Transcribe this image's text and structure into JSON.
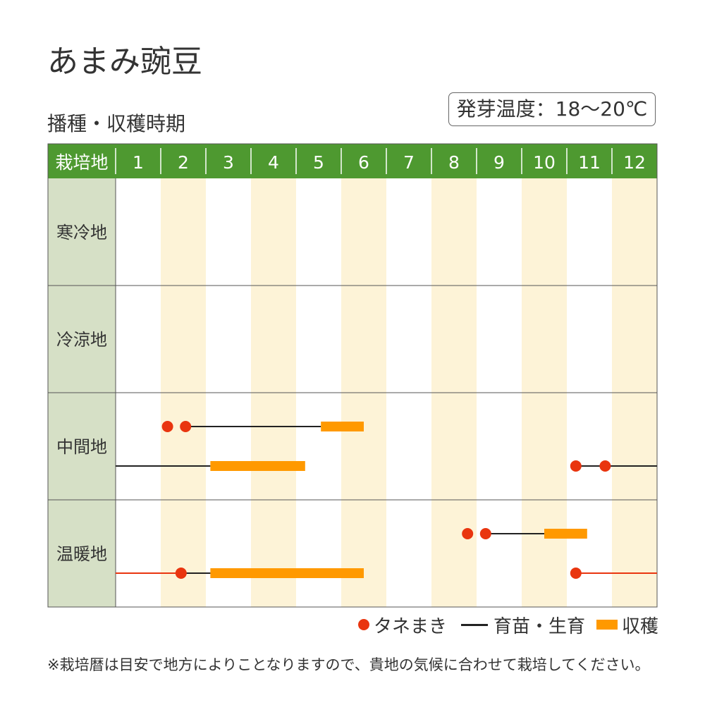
{
  "title": "あまみ豌豆",
  "subtitle": "播種・収穫時期",
  "germination_temp": "発芽温度：18〜20℃",
  "colors": {
    "header_green": "#4e9930",
    "side_green": "#d6e0c6",
    "stripe": "#fdf3d7",
    "sowing": "#e9350f",
    "nursery": "#222222",
    "harvest": "#ff9900"
  },
  "table": {
    "corner_label": "栽培地",
    "months": [
      "1",
      "2",
      "3",
      "4",
      "5",
      "6",
      "7",
      "8",
      "9",
      "10",
      "11",
      "12"
    ],
    "regions": [
      "寒冷地",
      "冷涼地",
      "中間地",
      "温暖地"
    ]
  },
  "chart_data": {
    "type": "table",
    "x_unit": "month",
    "rows": [
      {
        "region": "寒冷地",
        "tracks": []
      },
      {
        "region": "冷涼地",
        "tracks": []
      },
      {
        "region": "中間地",
        "tracks": [
          {
            "sowing": [
              2.15,
              2.55
            ],
            "nursery": [
              2.55,
              5.55
            ],
            "nursery_color": "nursery",
            "harvest": [
              5.55,
              6.5
            ]
          },
          {
            "nursery": [
              1.0,
              3.1
            ],
            "nursery_color": "nursery",
            "harvest": [
              3.1,
              5.2
            ]
          },
          {
            "sowing": [
              11.2,
              11.85
            ],
            "nursery": [
              11.2,
              13.0
            ],
            "nursery_color": "nursery"
          }
        ]
      },
      {
        "region": "温暖地",
        "tracks": [
          {
            "sowing": [
              8.8,
              9.2
            ],
            "nursery": [
              9.2,
              10.5
            ],
            "nursery_color": "nursery",
            "harvest": [
              10.5,
              11.45
            ]
          },
          {
            "sowing": [
              2.45
            ],
            "nursery": [
              1.0,
              3.1
            ],
            "nursery_color": "sowing",
            "post_line": [
              2.45,
              3.1
            ],
            "harvest": [
              3.1,
              6.5
            ]
          },
          {
            "sowing": [
              11.2
            ],
            "nursery": [
              11.2,
              13.0
            ],
            "nursery_color": "sowing"
          }
        ]
      }
    ]
  },
  "legend": {
    "sowing_label": "タネまき",
    "nursery_label": "育苗・生育",
    "harvest_label": "収穫"
  },
  "note": "※栽培暦は目安で地方によりことなりますので、貴地の気候に合わせて栽培してください。"
}
